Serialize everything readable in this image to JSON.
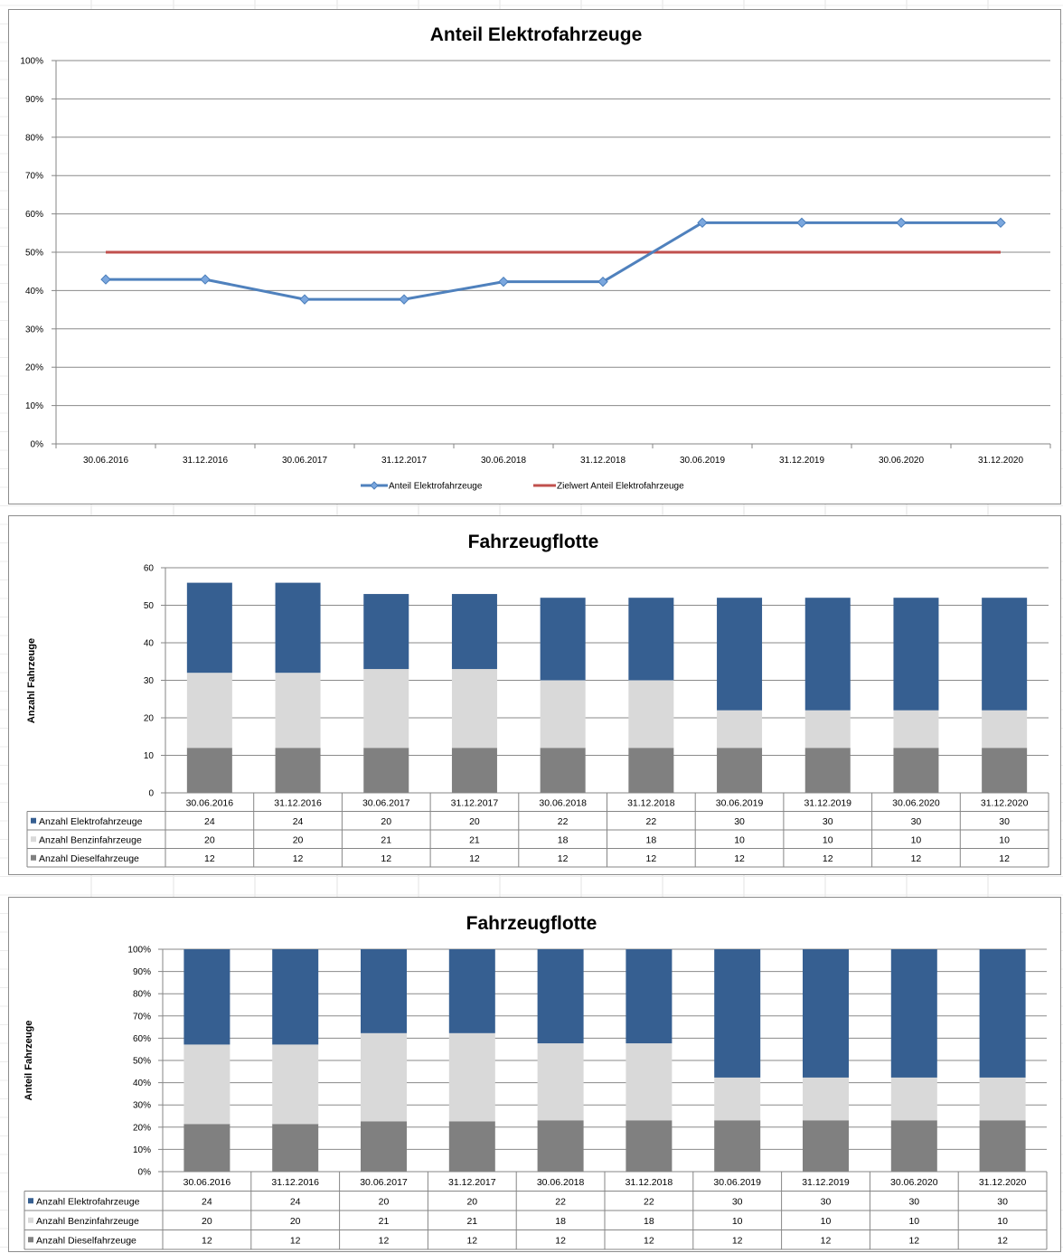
{
  "chart_data": [
    {
      "type": "line",
      "title": "Anteil Elektrofahrzeuge",
      "categories": [
        "30.06.2016",
        "31.12.2016",
        "30.06.2017",
        "31.12.2017",
        "30.06.2018",
        "31.12.2018",
        "30.06.2019",
        "31.12.2019",
        "30.06.2020",
        "31.12.2020"
      ],
      "series": [
        {
          "name": "Anteil Elektrofahrzeuge",
          "values": [
            42.9,
            42.9,
            37.7,
            37.7,
            42.3,
            42.3,
            57.7,
            57.7,
            57.7,
            57.7
          ],
          "color": "#4f81bd",
          "marker": "diamond"
        },
        {
          "name": "Zielwert Anteil Elektrofahrzeuge",
          "values": [
            50,
            50,
            50,
            50,
            50,
            50,
            50,
            50,
            50,
            50
          ],
          "color": "#c0504d"
        }
      ],
      "yticks": [
        "0%",
        "10%",
        "20%",
        "30%",
        "40%",
        "50%",
        "60%",
        "70%",
        "80%",
        "90%",
        "100%"
      ],
      "ylim": [
        0,
        100
      ],
      "grid": true,
      "legend": "bottom"
    },
    {
      "type": "bar",
      "stacked": true,
      "title": "Fahrzeugflotte",
      "ylabel": "Anzahl Fahrzeuge",
      "categories": [
        "30.06.2016",
        "31.12.2016",
        "30.06.2017",
        "31.12.2017",
        "30.06.2018",
        "31.12.2018",
        "30.06.2019",
        "31.12.2019",
        "30.06.2020",
        "31.12.2020"
      ],
      "series": [
        {
          "name": "Anzahl Elektrofahrzeuge",
          "values": [
            24,
            24,
            20,
            20,
            22,
            22,
            30,
            30,
            30,
            30
          ],
          "color": "#365f91"
        },
        {
          "name": "Anzahl Benzinfahrzeuge",
          "values": [
            20,
            20,
            21,
            21,
            18,
            18,
            10,
            10,
            10,
            10
          ],
          "color": "#d9d9d9"
        },
        {
          "name": "Anzahl Dieselfahrzeuge",
          "values": [
            12,
            12,
            12,
            12,
            12,
            12,
            12,
            12,
            12,
            12
          ],
          "color": "#808080"
        }
      ],
      "yticks": [
        "0",
        "10",
        "20",
        "30",
        "40",
        "50",
        "60"
      ],
      "ylim": [
        0,
        60
      ],
      "grid": true,
      "legend": "data-table"
    },
    {
      "type": "bar",
      "stacked": true,
      "percent": true,
      "title": "Fahrzeugflotte",
      "ylabel": "Anteil Fahrzeuge",
      "categories": [
        "30.06.2016",
        "31.12.2016",
        "30.06.2017",
        "31.12.2017",
        "30.06.2018",
        "31.12.2018",
        "30.06.2019",
        "31.12.2019",
        "30.06.2020",
        "31.12.2020"
      ],
      "series": [
        {
          "name": "Anzahl Elektrofahrzeuge",
          "values": [
            24,
            24,
            20,
            20,
            22,
            22,
            30,
            30,
            30,
            30
          ],
          "color": "#365f91"
        },
        {
          "name": "Anzahl Benzinfahrzeuge",
          "values": [
            20,
            20,
            21,
            21,
            18,
            18,
            10,
            10,
            10,
            10
          ],
          "color": "#d9d9d9"
        },
        {
          "name": "Anzahl Dieselfahrzeuge",
          "values": [
            12,
            12,
            12,
            12,
            12,
            12,
            12,
            12,
            12,
            12
          ],
          "color": "#808080"
        }
      ],
      "yticks": [
        "0%",
        "10%",
        "20%",
        "30%",
        "40%",
        "50%",
        "60%",
        "70%",
        "80%",
        "90%",
        "100%"
      ],
      "ylim": [
        0,
        100
      ],
      "grid": true,
      "legend": "data-table"
    }
  ]
}
